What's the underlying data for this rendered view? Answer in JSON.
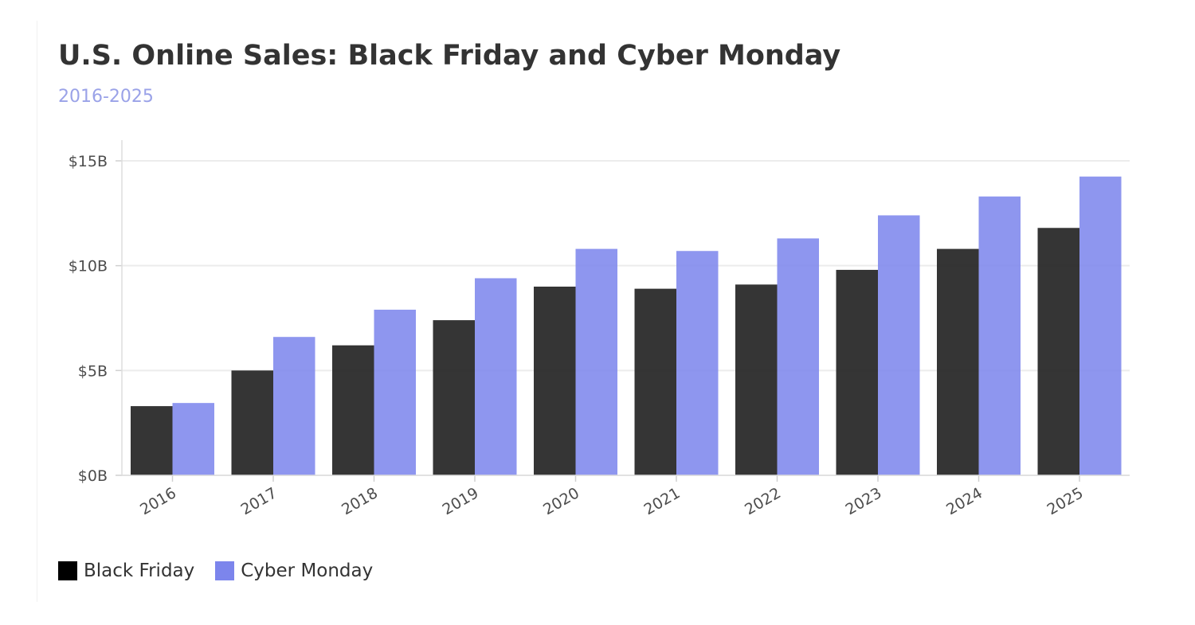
{
  "header": {
    "title": "U.S. Online Sales: Black Friday and Cyber Monday",
    "subtitle": "2016-2025"
  },
  "colors": {
    "black_friday": "#262626",
    "cyber_monday": "#7c85ec",
    "grid": "#ececec",
    "axis_text": "#4d4d4d"
  },
  "chart_data": {
    "type": "bar",
    "title": "U.S. Online Sales: Black Friday and Cyber Monday",
    "subtitle": "2016-2025",
    "categories": [
      "2016",
      "2017",
      "2018",
      "2019",
      "2020",
      "2021",
      "2022",
      "2023",
      "2024",
      "2025"
    ],
    "series": [
      {
        "name": "Black Friday",
        "color": "#262626",
        "values": [
          3.3,
          5.0,
          6.2,
          7.4,
          9.0,
          8.9,
          9.1,
          9.8,
          10.8,
          11.8
        ]
      },
      {
        "name": "Cyber Monday",
        "color": "#7c85ec",
        "values": [
          3.45,
          6.6,
          7.9,
          9.4,
          10.8,
          10.7,
          11.3,
          12.4,
          13.3,
          14.25
        ]
      }
    ],
    "y_ticks": [
      0,
      5,
      10,
      15
    ],
    "y_tick_labels": [
      "$0B",
      "$5B",
      "$10B",
      "$15B"
    ],
    "ylim": [
      0,
      15
    ],
    "xlabel": "",
    "ylabel": "",
    "grid": true,
    "legend": "bottom-left"
  }
}
